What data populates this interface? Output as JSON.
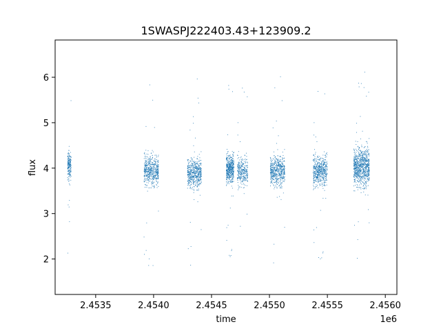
{
  "chart_data": {
    "type": "scatter",
    "title": "1SWASPJ222403.43+123909.2",
    "xlabel": "time",
    "ylabel": "flux",
    "x_offset_label": "1e6",
    "xlim": [
      2453150,
      2456100
    ],
    "ylim": [
      1.22,
      6.82
    ],
    "x_ticks": [
      2453500,
      2454000,
      2454500,
      2455000,
      2455500,
      2456000
    ],
    "x_tick_labels": [
      "2.4535",
      "2.4540",
      "2.4545",
      "2.4550",
      "2.4555",
      "2.4560"
    ],
    "y_ticks": [
      2,
      3,
      4,
      5,
      6
    ],
    "y_tick_labels": [
      "2",
      "3",
      "4",
      "5",
      "6"
    ],
    "grid": false,
    "point_color": "#1f77b4",
    "series": [
      {
        "clusters": [
          {
            "x_start": 2453255,
            "x_end": 2453285,
            "y_center": 4.05,
            "y_spread": 0.45,
            "density": 0.35
          },
          {
            "x_start": 2453915,
            "x_end": 2454040,
            "y_center": 3.95,
            "y_spread": 0.5,
            "density": 1.0
          },
          {
            "x_start": 2454290,
            "x_end": 2454410,
            "y_center": 3.9,
            "y_spread": 0.5,
            "density": 1.0
          },
          {
            "x_start": 2454625,
            "x_end": 2454690,
            "y_center": 4.0,
            "y_spread": 0.45,
            "density": 0.9
          },
          {
            "x_start": 2454720,
            "x_end": 2454810,
            "y_center": 3.95,
            "y_spread": 0.5,
            "density": 0.55
          },
          {
            "x_start": 2455005,
            "x_end": 2455130,
            "y_center": 3.95,
            "y_spread": 0.5,
            "density": 1.0
          },
          {
            "x_start": 2455375,
            "x_end": 2455495,
            "y_center": 3.95,
            "y_spread": 0.5,
            "density": 1.0
          },
          {
            "x_start": 2455725,
            "x_end": 2455860,
            "y_center": 4.05,
            "y_spread": 0.65,
            "density": 1.6
          }
        ]
      }
    ]
  }
}
